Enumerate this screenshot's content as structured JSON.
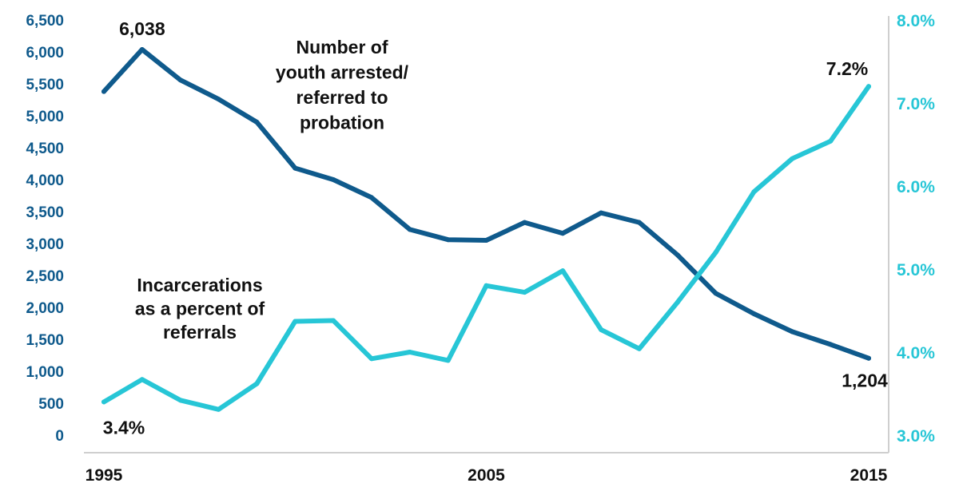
{
  "chart_data": {
    "type": "line",
    "x": [
      1995,
      1996,
      1997,
      1998,
      1999,
      2000,
      2001,
      2002,
      2003,
      2004,
      2005,
      2006,
      2007,
      2008,
      2009,
      2010,
      2011,
      2012,
      2013,
      2014,
      2015
    ],
    "series": [
      {
        "name": "Number of youth arrested/ referred to probation",
        "axis": "left",
        "color": "#0f5a8c",
        "values": [
          5380,
          6038,
          5560,
          5260,
          4900,
          4180,
          4000,
          3720,
          3220,
          3060,
          3050,
          3330,
          3160,
          3480,
          3330,
          2820,
          2220,
          1900,
          1620,
          1420,
          1204
        ],
        "annotation_lines": [
          "Number of",
          "youth arrested/",
          "referred to",
          "probation"
        ]
      },
      {
        "name": "Incarcerations as a percent of referrals",
        "axis": "right",
        "color": "#27c6d6",
        "values": [
          3.4,
          3.67,
          3.42,
          3.31,
          3.62,
          4.37,
          4.38,
          3.92,
          4.0,
          3.9,
          4.8,
          4.72,
          4.98,
          4.27,
          4.04,
          4.6,
          5.2,
          5.93,
          6.33,
          6.54,
          7.2
        ],
        "annotation_lines": [
          "Incarcerations",
          "as a percent of",
          "referrals"
        ]
      }
    ],
    "y_left": {
      "range": [
        0,
        6500
      ],
      "ticks": [
        "0",
        "500",
        "1,000",
        "1,500",
        "2,000",
        "2,500",
        "3,000",
        "3,500",
        "4,000",
        "4,500",
        "5,000",
        "5,500",
        "6,000",
        "6,500"
      ],
      "tick_values": [
        0,
        500,
        1000,
        1500,
        2000,
        2500,
        3000,
        3500,
        4000,
        4500,
        5000,
        5500,
        6000,
        6500
      ]
    },
    "y_right": {
      "range": [
        3.0,
        8.0
      ],
      "ticks": [
        "3.0%",
        "4.0%",
        "5.0%",
        "6.0%",
        "7.0%",
        "8.0%"
      ],
      "tick_values": [
        3,
        4,
        5,
        6,
        7,
        8
      ]
    },
    "x_ticks": [
      {
        "value": 1995,
        "label": "1995"
      },
      {
        "value": 2005,
        "label": "2005"
      },
      {
        "value": 2015,
        "label": "2015"
      }
    ],
    "data_labels": [
      {
        "series": 0,
        "index": 1,
        "text": "6,038"
      },
      {
        "series": 0,
        "index": 20,
        "text": "1,204"
      },
      {
        "series": 1,
        "index": 0,
        "text": "3.4%"
      },
      {
        "series": 1,
        "index": 20,
        "text": "7.2%"
      }
    ],
    "grid": false,
    "legend": "none"
  }
}
